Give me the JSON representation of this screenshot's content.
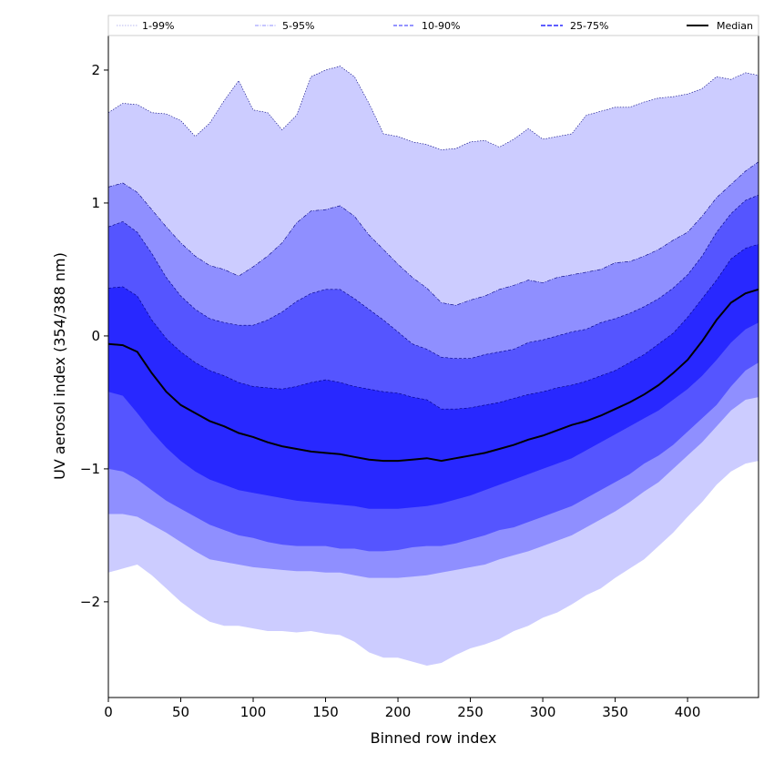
{
  "chart_data": {
    "type": "area",
    "title": "",
    "xlabel": "Binned row index",
    "ylabel": "UV aerosol index (354/388 nm)",
    "xlim": [
      0,
      449
    ],
    "ylim": [
      -2.72,
      2.26
    ],
    "x_ticks": [
      0,
      50,
      100,
      150,
      200,
      250,
      300,
      350,
      400
    ],
    "y_ticks": [
      -2,
      -1,
      0,
      1,
      2
    ],
    "grid": false,
    "legend_position": "top",
    "legend": [
      {
        "label": "1-99%",
        "style": "dotted",
        "color": "#ccccff"
      },
      {
        "label": "5-95%",
        "style": "dashdot",
        "color": "#8f8fff"
      },
      {
        "label": "10-90%",
        "style": "dashed",
        "color": "#5555ff"
      },
      {
        "label": "25-75%",
        "style": "dashed",
        "color": "#2828ff"
      },
      {
        "label": "Median",
        "style": "solid",
        "color": "#000000"
      }
    ],
    "x": [
      0,
      10,
      20,
      30,
      40,
      50,
      60,
      70,
      80,
      90,
      100,
      110,
      120,
      130,
      140,
      150,
      160,
      170,
      180,
      190,
      200,
      210,
      220,
      230,
      240,
      250,
      260,
      270,
      280,
      290,
      300,
      310,
      320,
      330,
      340,
      350,
      360,
      370,
      380,
      390,
      400,
      410,
      420,
      430,
      440,
      449
    ],
    "bands": [
      {
        "name": "1-99%",
        "color": "#ccccff",
        "lower": [
          -1.78,
          -1.75,
          -1.72,
          -1.8,
          -1.9,
          -2.0,
          -2.08,
          -2.15,
          -2.18,
          -2.18,
          -2.2,
          -2.22,
          -2.22,
          -2.23,
          -2.22,
          -2.24,
          -2.25,
          -2.3,
          -2.38,
          -2.42,
          -2.42,
          -2.45,
          -2.48,
          -2.46,
          -2.4,
          -2.35,
          -2.32,
          -2.28,
          -2.22,
          -2.18,
          -2.12,
          -2.08,
          -2.02,
          -1.95,
          -1.9,
          -1.82,
          -1.75,
          -1.68,
          -1.58,
          -1.48,
          -1.36,
          -1.25,
          -1.12,
          -1.02,
          -0.96,
          -0.94
        ],
        "upper": [
          1.68,
          1.75,
          1.74,
          1.68,
          1.67,
          1.62,
          1.5,
          1.6,
          1.77,
          1.92,
          1.7,
          1.68,
          1.55,
          1.66,
          1.95,
          2.0,
          2.03,
          1.95,
          1.75,
          1.52,
          1.5,
          1.46,
          1.44,
          1.4,
          1.41,
          1.46,
          1.47,
          1.42,
          1.48,
          1.56,
          1.48,
          1.5,
          1.52,
          1.66,
          1.69,
          1.72,
          1.72,
          1.76,
          1.79,
          1.8,
          1.82,
          1.86,
          1.95,
          1.93,
          1.98,
          1.96
        ]
      },
      {
        "name": "5-95%",
        "color": "#8f8fff",
        "lower": [
          -1.34,
          -1.34,
          -1.36,
          -1.42,
          -1.48,
          -1.55,
          -1.62,
          -1.68,
          -1.7,
          -1.72,
          -1.74,
          -1.75,
          -1.76,
          -1.77,
          -1.77,
          -1.78,
          -1.78,
          -1.8,
          -1.82,
          -1.82,
          -1.82,
          -1.81,
          -1.8,
          -1.78,
          -1.76,
          -1.74,
          -1.72,
          -1.68,
          -1.65,
          -1.62,
          -1.58,
          -1.54,
          -1.5,
          -1.44,
          -1.38,
          -1.32,
          -1.25,
          -1.17,
          -1.1,
          -1.0,
          -0.9,
          -0.8,
          -0.68,
          -0.56,
          -0.48,
          -0.46
        ],
        "upper": [
          1.12,
          1.15,
          1.08,
          0.95,
          0.82,
          0.7,
          0.6,
          0.53,
          0.5,
          0.45,
          0.52,
          0.6,
          0.7,
          0.85,
          0.94,
          0.95,
          0.98,
          0.9,
          0.76,
          0.65,
          0.54,
          0.44,
          0.36,
          0.25,
          0.23,
          0.27,
          0.3,
          0.35,
          0.38,
          0.42,
          0.4,
          0.44,
          0.46,
          0.48,
          0.5,
          0.55,
          0.56,
          0.6,
          0.65,
          0.72,
          0.78,
          0.9,
          1.04,
          1.14,
          1.24,
          1.31
        ]
      },
      {
        "name": "10-90%",
        "color": "#5555ff",
        "lower": [
          -1.0,
          -1.02,
          -1.08,
          -1.16,
          -1.24,
          -1.3,
          -1.36,
          -1.42,
          -1.46,
          -1.5,
          -1.52,
          -1.55,
          -1.57,
          -1.58,
          -1.58,
          -1.58,
          -1.6,
          -1.6,
          -1.62,
          -1.62,
          -1.61,
          -1.59,
          -1.58,
          -1.58,
          -1.56,
          -1.53,
          -1.5,
          -1.46,
          -1.44,
          -1.4,
          -1.36,
          -1.32,
          -1.28,
          -1.22,
          -1.16,
          -1.1,
          -1.04,
          -0.96,
          -0.9,
          -0.82,
          -0.72,
          -0.62,
          -0.52,
          -0.38,
          -0.26,
          -0.2
        ],
        "upper": [
          0.82,
          0.86,
          0.78,
          0.62,
          0.44,
          0.3,
          0.2,
          0.13,
          0.1,
          0.08,
          0.08,
          0.12,
          0.18,
          0.26,
          0.32,
          0.35,
          0.35,
          0.28,
          0.2,
          0.12,
          0.03,
          -0.06,
          -0.1,
          -0.16,
          -0.17,
          -0.17,
          -0.14,
          -0.12,
          -0.1,
          -0.05,
          -0.03,
          0.0,
          0.03,
          0.05,
          0.1,
          0.13,
          0.17,
          0.22,
          0.28,
          0.36,
          0.46,
          0.6,
          0.78,
          0.92,
          1.02,
          1.06
        ]
      },
      {
        "name": "25-75%",
        "color": "#2828ff",
        "lower": [
          -0.42,
          -0.45,
          -0.58,
          -0.72,
          -0.84,
          -0.94,
          -1.02,
          -1.08,
          -1.12,
          -1.16,
          -1.18,
          -1.2,
          -1.22,
          -1.24,
          -1.25,
          -1.26,
          -1.27,
          -1.28,
          -1.3,
          -1.3,
          -1.3,
          -1.29,
          -1.28,
          -1.26,
          -1.23,
          -1.2,
          -1.16,
          -1.12,
          -1.08,
          -1.04,
          -1.0,
          -0.96,
          -0.92,
          -0.86,
          -0.8,
          -0.74,
          -0.68,
          -0.62,
          -0.56,
          -0.48,
          -0.4,
          -0.3,
          -0.18,
          -0.05,
          0.05,
          0.1
        ],
        "upper": [
          0.36,
          0.37,
          0.3,
          0.12,
          -0.02,
          -0.12,
          -0.2,
          -0.26,
          -0.3,
          -0.35,
          -0.38,
          -0.39,
          -0.4,
          -0.38,
          -0.35,
          -0.33,
          -0.35,
          -0.38,
          -0.4,
          -0.42,
          -0.43,
          -0.46,
          -0.48,
          -0.55,
          -0.55,
          -0.54,
          -0.52,
          -0.5,
          -0.47,
          -0.44,
          -0.42,
          -0.39,
          -0.37,
          -0.34,
          -0.3,
          -0.26,
          -0.2,
          -0.14,
          -0.06,
          0.02,
          0.14,
          0.28,
          0.42,
          0.58,
          0.66,
          0.69
        ]
      }
    ],
    "median": {
      "name": "Median",
      "color": "#000000",
      "values": [
        -0.06,
        -0.07,
        -0.12,
        -0.28,
        -0.42,
        -0.52,
        -0.58,
        -0.64,
        -0.68,
        -0.73,
        -0.76,
        -0.8,
        -0.83,
        -0.85,
        -0.87,
        -0.88,
        -0.89,
        -0.91,
        -0.93,
        -0.94,
        -0.94,
        -0.93,
        -0.92,
        -0.94,
        -0.92,
        -0.9,
        -0.88,
        -0.85,
        -0.82,
        -0.78,
        -0.75,
        -0.71,
        -0.67,
        -0.64,
        -0.6,
        -0.55,
        -0.5,
        -0.44,
        -0.37,
        -0.28,
        -0.18,
        -0.04,
        0.12,
        0.25,
        0.32,
        0.35
      ]
    }
  }
}
